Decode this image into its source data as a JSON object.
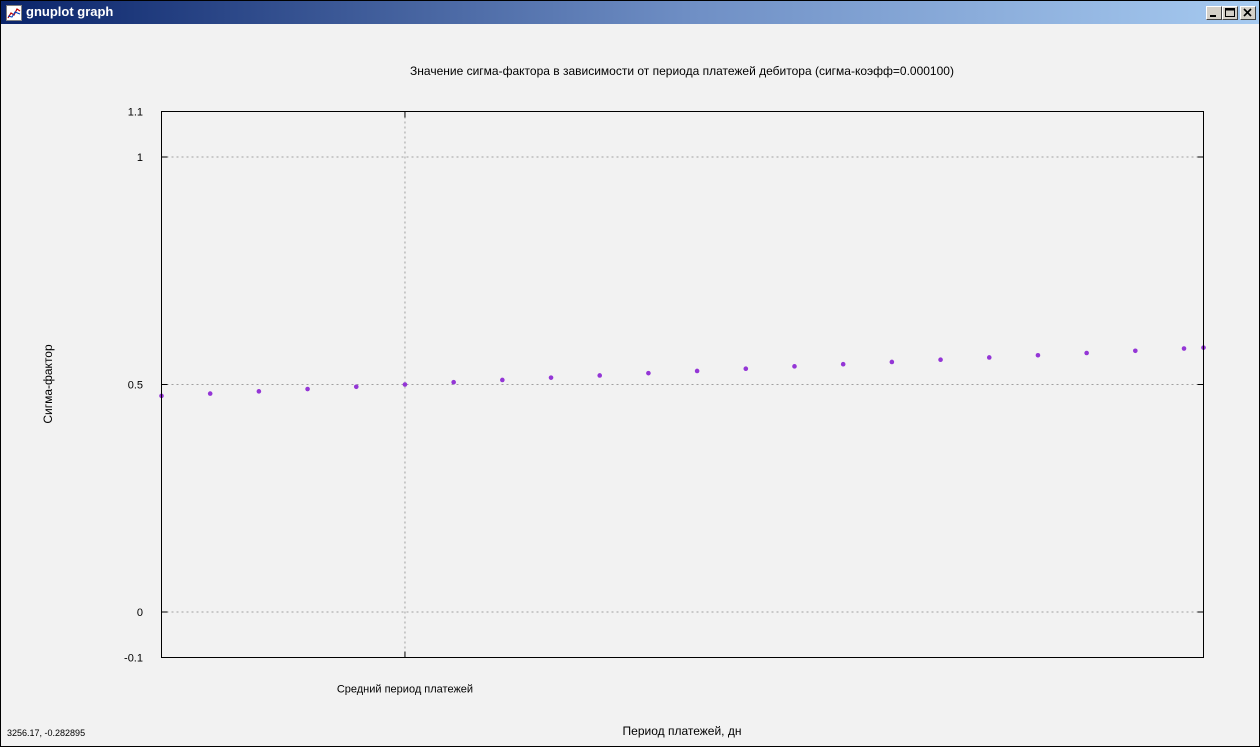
{
  "window": {
    "title": "gnuplot graph",
    "icon": "gnuplot-chart-icon",
    "buttons": [
      "minimize",
      "maximize",
      "close"
    ],
    "titlebar_colors": [
      "#0a246a",
      "#a6caf0"
    ]
  },
  "status": {
    "coordinates": "3256.17, -0.282895"
  },
  "chart_data": {
    "type": "scatter",
    "title": "Значение сигма-фактора в зависимости от периода платежей дебитора (сигма-коэфф=0.000100)",
    "xlabel": "Период платежей, дн",
    "ylabel": "Сигма-фактор",
    "xtick_labels": [
      {
        "x": 0,
        "label": "Средний период платежей"
      }
    ],
    "xlim": [
      -1000,
      3280
    ],
    "ylim": [
      -0.1,
      1.1
    ],
    "yticks": [
      -0.1,
      0,
      0.5,
      1,
      1.1
    ],
    "ytick_labels": [
      "-0.1",
      "0",
      "0.5",
      "1",
      "1.1"
    ],
    "grid": true,
    "series": [
      {
        "color": "#9436d6",
        "marker": "dot",
        "x": [
          -1000,
          -800,
          -600,
          -400,
          -200,
          0,
          200,
          400,
          600,
          800,
          1000,
          1200,
          1400,
          1600,
          1800,
          2000,
          2200,
          2400,
          2600,
          2800,
          3000,
          3200,
          3280
        ],
        "y": [
          0.475,
          0.48,
          0.485,
          0.49,
          0.495,
          0.5,
          0.505,
          0.51,
          0.515,
          0.5199,
          0.5249,
          0.5298,
          0.5347,
          0.5399,
          0.5446,
          0.5495,
          0.5545,
          0.5594,
          0.5643,
          0.5692,
          0.5741,
          0.579,
          0.581
        ]
      }
    ]
  }
}
